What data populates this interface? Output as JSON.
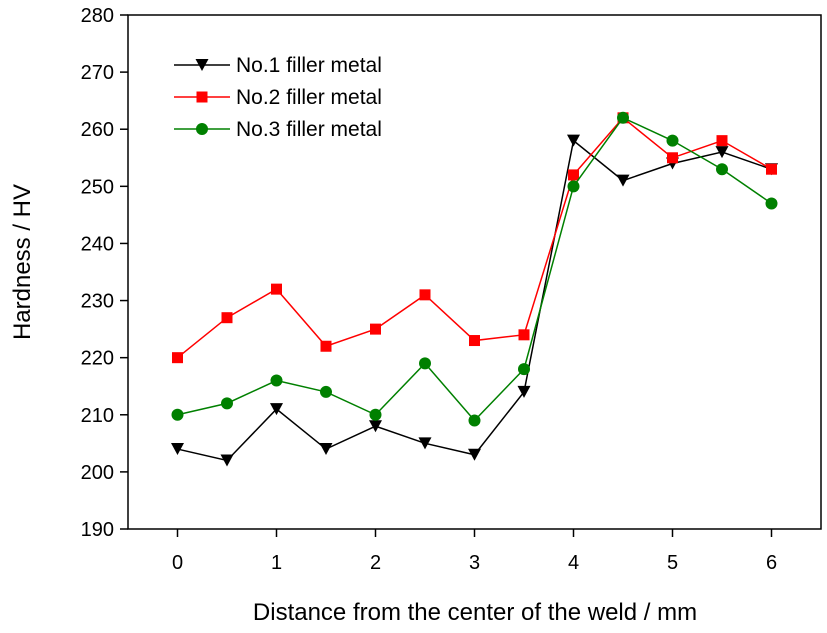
{
  "chart_data": {
    "type": "line",
    "title": "",
    "xlabel": "Distance from the center of the weld / mm",
    "ylabel": "Hardness / HV",
    "xlim": [
      -0.5,
      6.5
    ],
    "ylim": [
      190,
      280
    ],
    "xticks": [
      "0",
      "1",
      "2",
      "3",
      "4",
      "5",
      "6"
    ],
    "yticks": [
      "190",
      "200",
      "210",
      "220",
      "230",
      "240",
      "250",
      "260",
      "270",
      "280"
    ],
    "grid": false,
    "legend_position": "top-left",
    "x": [
      0,
      0.5,
      1,
      1.5,
      2,
      2.5,
      3,
      3.5,
      4,
      4.5,
      5,
      5.5,
      6
    ],
    "series": [
      {
        "name": "No.1 filler metal",
        "color": "#000000",
        "marker": "triangle-down",
        "values": [
          204,
          202,
          211,
          204,
          208,
          205,
          203,
          214,
          258,
          251,
          254,
          256,
          253
        ]
      },
      {
        "name": "No.2 filler metal",
        "color": "#ff0000",
        "marker": "square",
        "values": [
          220,
          227,
          232,
          222,
          225,
          231,
          223,
          224,
          252,
          262,
          255,
          258,
          253
        ]
      },
      {
        "name": "No.3 filler metal",
        "color": "#008000",
        "marker": "circle",
        "values": [
          210,
          212,
          216,
          214,
          210,
          219,
          209,
          218,
          250,
          262,
          258,
          253,
          247
        ]
      }
    ]
  }
}
